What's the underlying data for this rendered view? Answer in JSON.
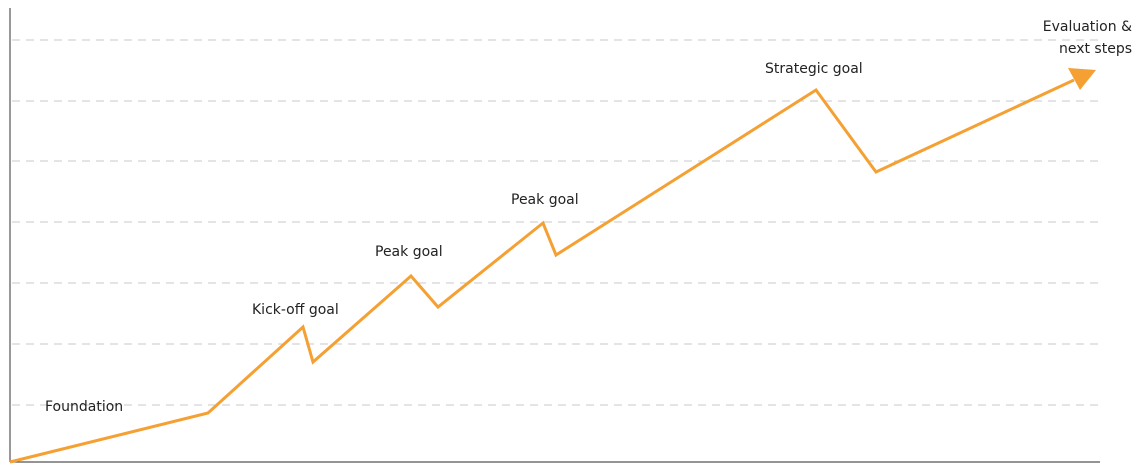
{
  "milestones": [
    "Foundation",
    "Kick-off goal",
    "Peak goal",
    "Peak goal",
    "Strategic goal"
  ],
  "end_label": [
    "Evaluation &",
    "next steps"
  ]
}
